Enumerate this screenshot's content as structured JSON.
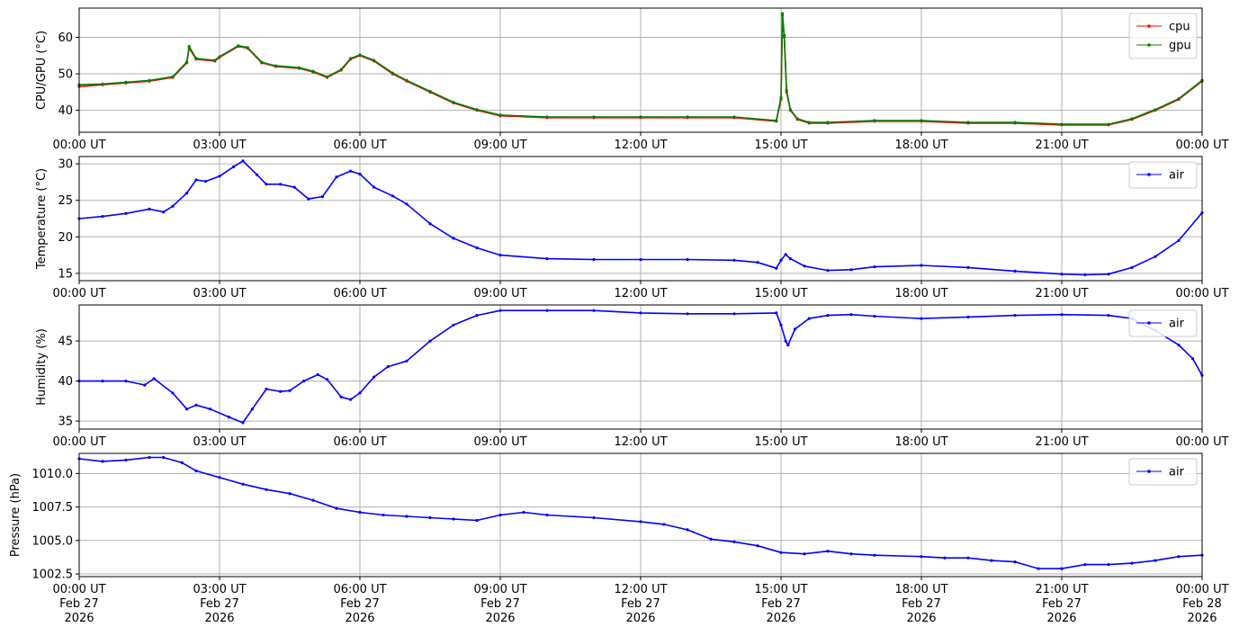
{
  "x_ticks": [
    "00:00 UT",
    "03:00 UT",
    "06:00 UT",
    "09:00 UT",
    "12:00 UT",
    "15:00 UT",
    "18:00 UT",
    "21:00 UT",
    "00:00 UT"
  ],
  "x_ticks_bottom": [
    [
      "00:00 UT",
      "Feb 27",
      "2026"
    ],
    [
      "03:00 UT",
      "Feb 27",
      "2026"
    ],
    [
      "06:00 UT",
      "Feb 27",
      "2026"
    ],
    [
      "09:00 UT",
      "Feb 27",
      "2026"
    ],
    [
      "12:00 UT",
      "Feb 27",
      "2026"
    ],
    [
      "15:00 UT",
      "Feb 27",
      "2026"
    ],
    [
      "18:00 UT",
      "Feb 27",
      "2026"
    ],
    [
      "21:00 UT",
      "Feb 27",
      "2026"
    ],
    [
      "00:00 UT",
      "Feb 28",
      "2026"
    ]
  ],
  "colors": {
    "cpu": "#ff0000",
    "gpu": "#008000",
    "air": "#0000ff",
    "grid": "#b0b0b0"
  },
  "chart_data": [
    {
      "type": "line",
      "ylabel": "CPU/GPU (°C)",
      "x_range": [
        "2026-02-27 00:00 UT",
        "2026-02-28 00:00 UT"
      ],
      "ylim": [
        34,
        68
      ],
      "yticks": [
        40,
        50,
        60
      ],
      "yticklabels": [
        "40",
        "50",
        "60"
      ],
      "grid": true,
      "legend": "top-right",
      "x_hours": [
        0,
        0.5,
        1,
        1.5,
        2,
        2.3,
        2.35,
        2.5,
        2.9,
        3,
        3.4,
        3.6,
        3.9,
        4.2,
        4.7,
        5,
        5.3,
        5.6,
        5.8,
        6,
        6.3,
        6.7,
        7,
        7.5,
        8,
        8.5,
        9,
        10,
        11,
        12,
        13,
        14,
        14.9,
        15,
        15.03,
        15.07,
        15.12,
        15.2,
        15.35,
        15.6,
        16,
        17,
        18,
        19,
        20,
        21,
        22,
        22.5,
        23,
        23.5,
        24
      ],
      "series": [
        {
          "name": "cpu",
          "values": [
            46.5,
            47,
            47.5,
            48,
            49,
            53,
            57,
            54,
            53.5,
            54.5,
            57.5,
            57,
            53,
            52,
            51.5,
            50.5,
            49,
            51,
            54,
            55,
            53.5,
            50,
            48,
            45,
            42,
            40,
            38.5,
            38,
            38,
            38,
            38,
            38,
            37,
            43,
            66,
            60,
            45,
            40,
            37.5,
            36.5,
            36.5,
            37,
            37,
            36.5,
            36.5,
            36,
            36,
            37.5,
            40,
            43,
            48
          ]
        },
        {
          "name": "gpu",
          "values": [
            47,
            47.2,
            47.7,
            48.2,
            49.2,
            53.2,
            57.5,
            54.2,
            53.7,
            54.7,
            57.7,
            57.2,
            53.2,
            52.2,
            51.7,
            50.7,
            49.2,
            51.2,
            54.2,
            55.2,
            53.7,
            50.2,
            48.2,
            45.2,
            42.2,
            40.2,
            38.7,
            38.2,
            38.2,
            38.2,
            38.2,
            38.2,
            37.2,
            43.5,
            66.5,
            60.5,
            45.5,
            40.2,
            37.7,
            36.7,
            36.7,
            37.2,
            37.2,
            36.7,
            36.7,
            36.2,
            36.2,
            37.7,
            40.2,
            43.2,
            48.2
          ]
        }
      ]
    },
    {
      "type": "line",
      "ylabel": "Temperature (°C)",
      "x_range": [
        "2026-02-27 00:00 UT",
        "2026-02-28 00:00 UT"
      ],
      "ylim": [
        14,
        31
      ],
      "yticks": [
        15,
        20,
        25,
        30
      ],
      "yticklabels": [
        "15",
        "20",
        "25",
        "30"
      ],
      "grid": true,
      "legend": "top-right",
      "x_hours": [
        0,
        0.5,
        1,
        1.5,
        1.8,
        2,
        2.3,
        2.5,
        2.7,
        3,
        3.3,
        3.5,
        3.8,
        4,
        4.3,
        4.6,
        4.9,
        5.2,
        5.5,
        5.8,
        6,
        6.3,
        6.7,
        7,
        7.5,
        8,
        8.5,
        9,
        10,
        11,
        12,
        13,
        14,
        14.5,
        14.9,
        15,
        15.1,
        15.2,
        15.5,
        16,
        16.5,
        17,
        18,
        19,
        20,
        21,
        21.5,
        22,
        22.5,
        23,
        23.5,
        24
      ],
      "series": [
        {
          "name": "air",
          "values": [
            22.5,
            22.8,
            23.2,
            23.8,
            23.4,
            24.2,
            26,
            27.8,
            27.6,
            28.3,
            29.6,
            30.4,
            28.5,
            27.2,
            27.2,
            26.8,
            25.2,
            25.5,
            28.2,
            29,
            28.6,
            26.8,
            25.6,
            24.5,
            21.8,
            19.8,
            18.5,
            17.5,
            17,
            16.9,
            16.9,
            16.9,
            16.8,
            16.5,
            15.7,
            16.8,
            17.6,
            17,
            16,
            15.4,
            15.5,
            15.9,
            16.1,
            15.8,
            15.3,
            14.9,
            14.8,
            14.9,
            15.8,
            17.3,
            19.5,
            23.3
          ]
        }
      ]
    },
    {
      "type": "line",
      "ylabel": "Humidity (%)",
      "x_range": [
        "2026-02-27 00:00 UT",
        "2026-02-28 00:00 UT"
      ],
      "ylim": [
        34,
        49.5
      ],
      "yticks": [
        35,
        40,
        45
      ],
      "yticklabels": [
        "35",
        "40",
        "45"
      ],
      "grid": true,
      "legend": "top-right",
      "x_hours": [
        0,
        0.5,
        1,
        1.4,
        1.6,
        2,
        2.3,
        2.5,
        2.8,
        3.2,
        3.5,
        3.7,
        4,
        4.3,
        4.5,
        4.8,
        5.1,
        5.3,
        5.6,
        5.8,
        6,
        6.3,
        6.6,
        7,
        7.5,
        8,
        8.5,
        9,
        10,
        11,
        12,
        13,
        14,
        14.9,
        15,
        15.1,
        15.15,
        15.3,
        15.6,
        16,
        16.5,
        17,
        18,
        19,
        20,
        21,
        22,
        22.5,
        23,
        23.5,
        23.8,
        24
      ],
      "series": [
        {
          "name": "air",
          "values": [
            40,
            40,
            40,
            39.5,
            40.3,
            38.5,
            36.5,
            37,
            36.5,
            35.5,
            34.8,
            36.5,
            39,
            38.7,
            38.8,
            40,
            40.8,
            40.2,
            38,
            37.7,
            38.5,
            40.5,
            41.8,
            42.5,
            45,
            47,
            48.2,
            48.8,
            48.8,
            48.8,
            48.5,
            48.4,
            48.4,
            48.5,
            47,
            45,
            44.5,
            46.5,
            47.8,
            48.2,
            48.3,
            48.1,
            47.8,
            48,
            48.2,
            48.3,
            48.2,
            47.8,
            46.3,
            44.5,
            42.8,
            40.7
          ]
        }
      ]
    },
    {
      "type": "line",
      "ylabel": "Pressure (hPa)",
      "x_range": [
        "2026-02-27 00:00 UT",
        "2026-02-28 00:00 UT"
      ],
      "ylim": [
        1002.3,
        1011.5
      ],
      "yticks": [
        1002.5,
        1005.0,
        1007.5,
        1010.0
      ],
      "yticklabels": [
        "1002.5",
        "1005.0",
        "1007.5",
        "1010.0"
      ],
      "grid": true,
      "legend": "top-right",
      "x_hours": [
        0,
        0.5,
        1,
        1.5,
        1.8,
        2.2,
        2.5,
        3,
        3.5,
        4,
        4.5,
        5,
        5.5,
        6,
        6.5,
        7,
        7.5,
        8,
        8.5,
        9,
        9.5,
        10,
        11,
        12,
        12.5,
        13,
        13.5,
        14,
        14.5,
        15,
        15.5,
        16,
        16.5,
        17,
        18,
        18.5,
        19,
        19.5,
        20,
        20.5,
        21,
        21.5,
        22,
        22.5,
        23,
        23.5,
        24
      ],
      "series": [
        {
          "name": "air",
          "values": [
            1011.1,
            1010.9,
            1011,
            1011.2,
            1011.2,
            1010.8,
            1010.2,
            1009.7,
            1009.2,
            1008.8,
            1008.5,
            1008,
            1007.4,
            1007.1,
            1006.9,
            1006.8,
            1006.7,
            1006.6,
            1006.5,
            1006.9,
            1007.1,
            1006.9,
            1006.7,
            1006.4,
            1006.2,
            1005.8,
            1005.1,
            1004.9,
            1004.6,
            1004.1,
            1004,
            1004.2,
            1004,
            1003.9,
            1003.8,
            1003.7,
            1003.7,
            1003.5,
            1003.4,
            1002.9,
            1002.9,
            1003.2,
            1003.2,
            1003.3,
            1003.5,
            1003.8,
            1003.9
          ]
        }
      ]
    }
  ]
}
